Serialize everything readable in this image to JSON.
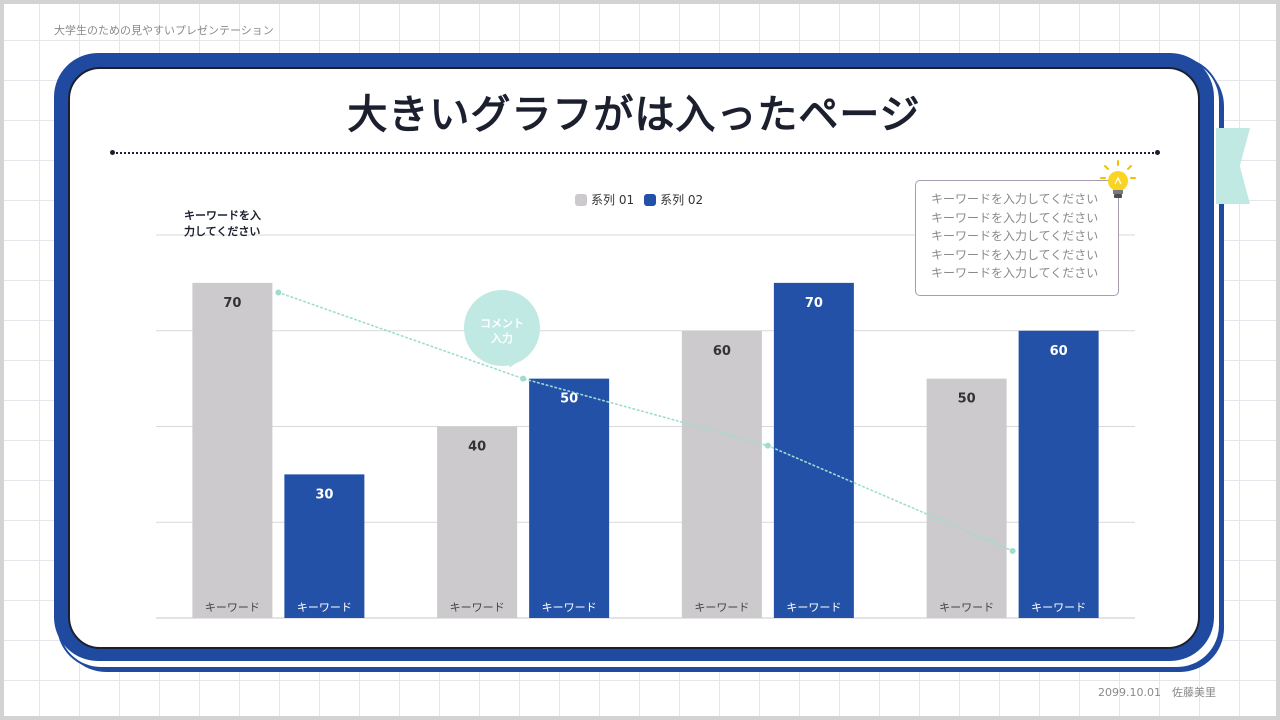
{
  "header": {
    "note": "大学生のための見やすいプレゼンテーション"
  },
  "footer": {
    "note": "2099.10.01　佐藤美里"
  },
  "slide": {
    "title": "大きいグラフがは入ったページ"
  },
  "annotation": {
    "text": "キーワードを入\n力してください"
  },
  "bubble": {
    "text": "コメント\n入力"
  },
  "textbox": {
    "lines": [
      "キーワードを入力してください",
      "キーワードを入力してください",
      "キーワードを入力してください",
      "キーワードを入力してください",
      "キーワードを入力してください"
    ]
  },
  "icons": {
    "bulb": "lightbulb-icon",
    "ribbon": "ribbon-tab"
  },
  "colors": {
    "primary": "#1f4aa0",
    "series1": "#cccacd",
    "series2": "#2351a8",
    "accent": "#bfe9e2",
    "trend": "#9fdccf",
    "text": "#1b1f2e"
  },
  "chart_data": {
    "type": "bar",
    "title": "",
    "xlabel": "",
    "ylabel": "",
    "ylim": [
      0,
      80
    ],
    "grid": true,
    "legend_position": "top-center",
    "categories": [
      "キーワード",
      "キーワード",
      "キーワード",
      "キーワード"
    ],
    "bar_labels": [
      [
        "キーワード",
        "キーワード"
      ],
      [
        "キーワード",
        "キーワード"
      ],
      [
        "キーワード",
        "キーワード"
      ],
      [
        "キーワード",
        "キーワード"
      ]
    ],
    "series": [
      {
        "name": "系列 01",
        "values": [
          70,
          40,
          60,
          50
        ]
      },
      {
        "name": "系列 02",
        "values": [
          30,
          50,
          70,
          60
        ]
      }
    ],
    "trend_line": {
      "style": "dotted",
      "points": [
        {
          "category_index": 0,
          "value": 68
        },
        {
          "category_index": 1,
          "value": 50
        },
        {
          "category_index": 2,
          "value": 36
        },
        {
          "category_index": 3,
          "value": 14
        }
      ]
    }
  }
}
